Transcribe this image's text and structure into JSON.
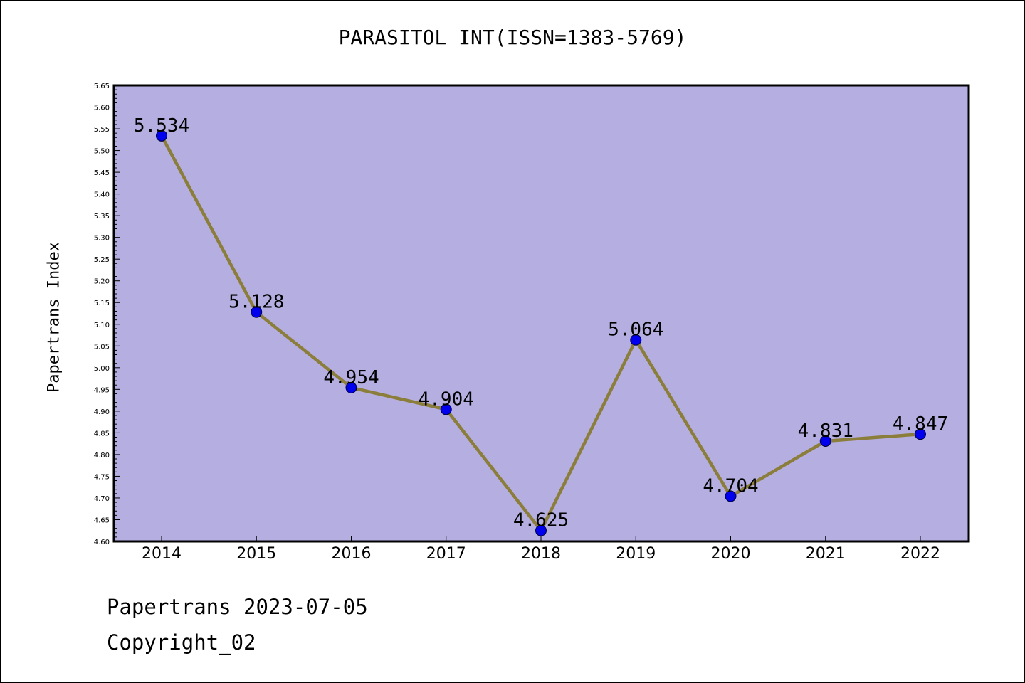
{
  "chart_data": {
    "type": "line",
    "title": "PARASITOL INT(ISSN=1383-5769)",
    "xlabel": "",
    "ylabel": "Papertrans Index",
    "categories": [
      "2014",
      "2015",
      "2016",
      "2017",
      "2018",
      "2019",
      "2020",
      "2021",
      "2022"
    ],
    "values": [
      5.534,
      5.128,
      4.954,
      4.904,
      4.625,
      5.064,
      4.704,
      4.831,
      4.847
    ],
    "data_labels": [
      "5.534",
      "5.128",
      "4.954",
      "4.904",
      "4.625",
      "5.064",
      "4.704",
      "4.831",
      "4.847"
    ],
    "ylim": [
      4.6,
      5.65
    ],
    "ytick_step": 0.05,
    "ytick_labels": [
      "4.60",
      "4.65",
      "4.70",
      "4.75",
      "4.80",
      "4.85",
      "4.90",
      "4.95",
      "5.00",
      "5.05",
      "5.10",
      "5.15",
      "5.20",
      "5.25",
      "5.30",
      "5.35",
      "5.40",
      "5.45",
      "5.50",
      "5.55",
      "5.60",
      "5.65"
    ],
    "grid": false,
    "colors": {
      "plot_background": "#b5aee1",
      "line": "#8b7d3a",
      "marker": "#0000ee"
    }
  },
  "footer": {
    "date_line": "Papertrans 2023-07-05",
    "copyright_line": "Copyright_02"
  }
}
